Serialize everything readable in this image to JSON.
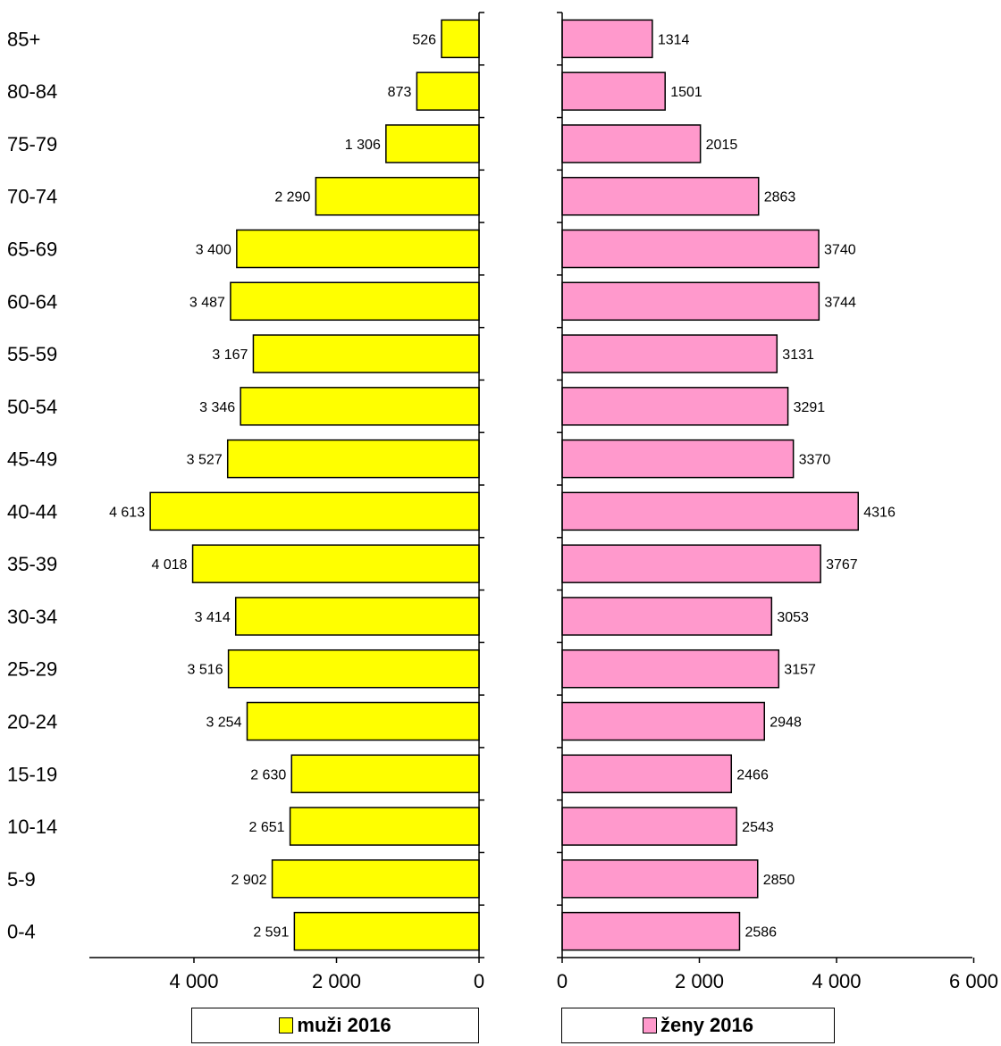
{
  "chart_data": {
    "type": "bar",
    "title": "",
    "xlabel": "",
    "ylabel": "",
    "categories": [
      "0-4",
      "5-9",
      "10-14",
      "15-19",
      "20-24",
      "25-29",
      "30-34",
      "35-39",
      "40-44",
      "45-49",
      "50-54",
      "55-59",
      "60-64",
      "65-69",
      "70-74",
      "75-79",
      "80-84",
      "85+"
    ],
    "series": [
      {
        "name": "muži 2016",
        "color": "#ffff00",
        "values": [
          2591,
          2902,
          2651,
          2630,
          3254,
          3516,
          3414,
          4018,
          4613,
          3527,
          3346,
          3167,
          3487,
          3400,
          2290,
          1306,
          873,
          526
        ],
        "value_labels": [
          "2 591",
          "2 902",
          "2 651",
          "2 630",
          "3 254",
          "3 516",
          "3 414",
          "4 018",
          "4 613",
          "3 527",
          "3 346",
          "3 167",
          "3 487",
          "3 400",
          "2 290",
          "1 306",
          "873",
          "526"
        ],
        "xlim": [
          0,
          5500
        ],
        "ticks": [
          0,
          2000,
          4000
        ],
        "tick_labels": [
          "0",
          "2 000",
          "4 000"
        ]
      },
      {
        "name": "ženy 2016",
        "color": "#ff99cc",
        "values": [
          2586,
          2850,
          2543,
          2466,
          2948,
          3157,
          3053,
          3767,
          4316,
          3370,
          3291,
          3131,
          3744,
          3740,
          2863,
          2015,
          1501,
          1314
        ],
        "value_labels": [
          "2586",
          "2850",
          "2543",
          "2466",
          "2948",
          "3157",
          "3053",
          "3767",
          "4316",
          "3370",
          "3291",
          "3131",
          "3744",
          "3740",
          "2863",
          "2015",
          "1501",
          "1314"
        ],
        "xlim": [
          0,
          6000
        ],
        "ticks": [
          0,
          2000,
          4000,
          6000
        ],
        "tick_labels": [
          "0",
          "2 000",
          "4 000",
          "6 000"
        ]
      }
    ],
    "legend": [
      "muži 2016",
      "ženy 2016"
    ],
    "legend_position": "bottom",
    "grid": false
  }
}
